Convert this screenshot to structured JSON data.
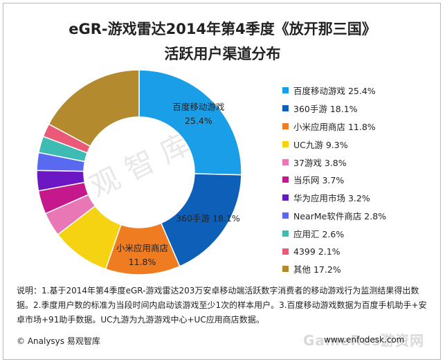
{
  "header": {
    "title_line1": "eGR-游戏雷达2014年第4季度《放开那三国》",
    "title_line2": "活跃用户渠道分布"
  },
  "chart_data": {
    "type": "pie",
    "series": [
      {
        "name": "百度移动游戏",
        "value": 25.4,
        "color": "#1a9ee8",
        "legend": "百度移动游戏 25.4%"
      },
      {
        "name": "360手游",
        "value": 18.1,
        "color": "#0e5fb8",
        "legend": "360手游 18.1%"
      },
      {
        "name": "小米应用商店",
        "value": 11.8,
        "color": "#f07c21",
        "legend": "小米应用商店 11.8%"
      },
      {
        "name": "UC九游",
        "value": 9.3,
        "color": "#f5d313",
        "legend": "UC九游 9.3%"
      },
      {
        "name": "37游戏",
        "value": 3.8,
        "color": "#ea77b5",
        "legend": "37游戏 3.8%"
      },
      {
        "name": "当乐网",
        "value": 3.7,
        "color": "#c4188c",
        "legend": "当乐网 3.7%"
      },
      {
        "name": "华为应用市场",
        "value": 3.2,
        "color": "#6b17c4",
        "legend": "华为应用市场 3.2%"
      },
      {
        "name": "NearMe软件商店",
        "value": 2.8,
        "color": "#5a6af0",
        "legend": "NearMe软件商店 2.8%"
      },
      {
        "name": "应用汇",
        "value": 2.6,
        "color": "#3ebcb4",
        "legend": "应用汇 2.6%"
      },
      {
        "name": "4399",
        "value": 2.1,
        "color": "#ea5a78",
        "legend": "4399 2.1%"
      },
      {
        "name": "其他",
        "value": 17.2,
        "color": "#b38a2e",
        "legend": "其他 17.2%"
      }
    ],
    "data_labels": [
      {
        "series": "百度移动游戏",
        "line1": "百度移动游戏",
        "line2": "25.4%"
      },
      {
        "series": "360手游",
        "line1": "360手游 18.1%",
        "line2": ""
      },
      {
        "series": "小米应用商店",
        "line1": "小米应用商店",
        "line2": "11.8%"
      }
    ],
    "legend_position": "right"
  },
  "note": {
    "text": "说明：1.基于2014年第4季度eGR-游戏雷达203万安卓移动端活跃数字消费者的移动游戏行为监测结果得出数据。2.季度用户数的标准为当段时间内启动该游戏至少1次的样本用户。3.百度移动游戏数据为百度手机助手+安卓市场+91助手数据。UC九游为九游游戏中心+UC应用商店数据。"
  },
  "footer": {
    "left": "© Analysys 易观智库",
    "right": "www.enfodesk.com"
  },
  "watermarks": {
    "center": "易观智库",
    "bottom_right": "GameRes游资网"
  }
}
